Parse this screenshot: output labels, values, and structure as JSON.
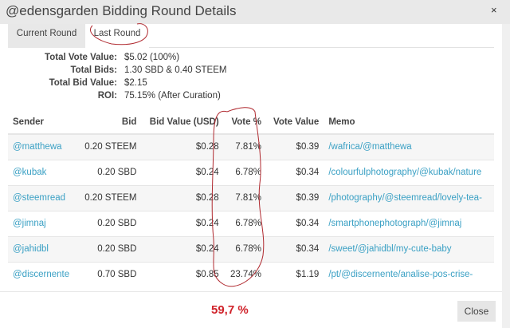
{
  "dialog": {
    "title": "@edensgarden Bidding Round Details",
    "close_icon": "×",
    "close_button": "Close"
  },
  "tabs": [
    {
      "label": "Current Round"
    },
    {
      "label": "Last Round",
      "active": true
    }
  ],
  "summary": [
    {
      "label": "Total Vote Value:",
      "value": "$5.02 (100%)"
    },
    {
      "label": "Total Bids:",
      "value": "1.30 SBD & 0.40 STEEM"
    },
    {
      "label": "Total Bid Value:",
      "value": "$2.15"
    },
    {
      "label": "ROI:",
      "value": "75.15% (After Curation)"
    }
  ],
  "table": {
    "headers": [
      "Sender",
      "Bid",
      "Bid Value (USD)",
      "Vote %",
      "Vote Value",
      "Memo"
    ],
    "rows": [
      [
        "@matthewa",
        "0.20 STEEM",
        "$0.28",
        "7.81%",
        "$0.39",
        "/wafrica/@matthewa"
      ],
      [
        "@kubak",
        "0.20 SBD",
        "$0.24",
        "6.78%",
        "$0.34",
        "/colourfulphotography/@kubak/nature"
      ],
      [
        "@steemread",
        "0.20 STEEM",
        "$0.28",
        "7.81%",
        "$0.39",
        "/photography/@steemread/lovely-tea-"
      ],
      [
        "@jimnaj",
        "0.20 SBD",
        "$0.24",
        "6.78%",
        "$0.34",
        "/smartphonephotograph/@jimnaj"
      ],
      [
        "@jahidbl",
        "0.20 SBD",
        "$0.24",
        "6.78%",
        "$0.34",
        "/sweet/@jahidbl/my-cute-baby"
      ],
      [
        "@discernente",
        "0.70 SBD",
        "$0.85",
        "23.74%",
        "$1.19",
        "/pt/@discernente/analise-pos-crise-"
      ]
    ]
  },
  "annotation": {
    "total": "59,7 %",
    "color": "#d0232b"
  }
}
